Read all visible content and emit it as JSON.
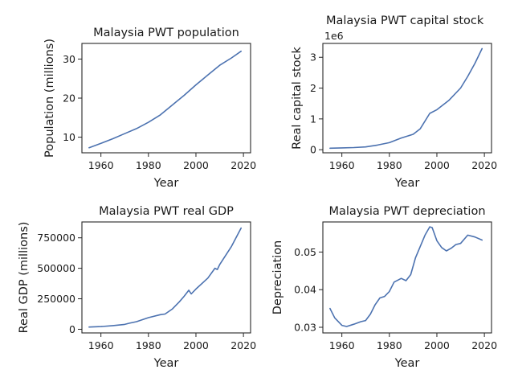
{
  "chart_data": [
    {
      "id": "population",
      "type": "line",
      "title": "Malaysia PWT population",
      "xlabel": "Year",
      "ylabel": "Population (millions)",
      "xlim": [
        1952,
        2023
      ],
      "ylim": [
        6,
        34
      ],
      "xticks": [
        1960,
        1980,
        2000,
        2020
      ],
      "yticks": [
        10,
        20,
        30
      ],
      "ytick_labels": [
        "10",
        "20",
        "30"
      ],
      "offset_label": "",
      "x": [
        1955,
        1960,
        1965,
        1970,
        1975,
        1980,
        1985,
        1990,
        1995,
        2000,
        2005,
        2010,
        2015,
        2019
      ],
      "y": [
        7.3,
        8.4,
        9.6,
        10.9,
        12.2,
        13.8,
        15.7,
        18.2,
        20.7,
        23.4,
        25.9,
        28.4,
        30.3,
        32.0
      ]
    },
    {
      "id": "capital-stock",
      "type": "line",
      "title": "Malaysia PWT capital stock",
      "xlabel": "Year",
      "ylabel": "Real capital stock",
      "xlim": [
        1952,
        2023
      ],
      "ylim": [
        -0.1,
        3.45
      ],
      "xticks": [
        1960,
        1980,
        2000,
        2020
      ],
      "yticks": [
        0,
        1,
        2,
        3
      ],
      "ytick_labels": [
        "0",
        "1",
        "2",
        "3"
      ],
      "offset_label": "1e6",
      "x": [
        1955,
        1960,
        1965,
        1970,
        1975,
        1980,
        1985,
        1990,
        1993,
        1997,
        2000,
        2005,
        2010,
        2013,
        2016,
        2019
      ],
      "y": [
        0.05,
        0.06,
        0.07,
        0.09,
        0.15,
        0.23,
        0.38,
        0.5,
        0.68,
        1.18,
        1.3,
        1.6,
        2.0,
        2.38,
        2.8,
        3.28
      ]
    },
    {
      "id": "real-gdp",
      "type": "line",
      "title": "Malaysia PWT real GDP",
      "xlabel": "Year",
      "ylabel": "Real GDP (millions)",
      "xlim": [
        1952,
        2023
      ],
      "ylim": [
        -30000,
        880000
      ],
      "xticks": [
        1960,
        1980,
        2000,
        2020
      ],
      "yticks": [
        0,
        250000,
        500000,
        750000
      ],
      "ytick_labels": [
        "0",
        "250000",
        "500000",
        "750000"
      ],
      "offset_label": "",
      "x": [
        1955,
        1960,
        1965,
        1970,
        1972,
        1975,
        1980,
        1985,
        1987,
        1990,
        1993,
        1995,
        1997,
        1998,
        2000,
        2005,
        2008,
        2009,
        2010,
        2015,
        2019
      ],
      "y": [
        18000,
        22000,
        30000,
        40000,
        50000,
        62000,
        95000,
        120000,
        125000,
        165000,
        225000,
        270000,
        320000,
        290000,
        330000,
        420000,
        500000,
        490000,
        530000,
        680000,
        830000
      ]
    },
    {
      "id": "depreciation",
      "type": "line",
      "title": "Malaysia PWT depreciation",
      "xlabel": "Year",
      "ylabel": "Depreciation",
      "xlim": [
        1952,
        2023
      ],
      "ylim": [
        0.0285,
        0.058
      ],
      "xticks": [
        1960,
        1980,
        2000,
        2020
      ],
      "yticks": [
        0.03,
        0.04,
        0.05
      ],
      "ytick_labels": [
        "0.03",
        "0.04",
        "0.05"
      ],
      "offset_label": "",
      "x": [
        1955,
        1957,
        1960,
        1962,
        1965,
        1968,
        1970,
        1972,
        1974,
        1976,
        1978,
        1980,
        1982,
        1985,
        1987,
        1989,
        1991,
        1993,
        1995,
        1997,
        1998,
        2000,
        2002,
        2004,
        2006,
        2008,
        2010,
        2013,
        2016,
        2019
      ],
      "y": [
        0.035,
        0.0325,
        0.0305,
        0.0302,
        0.0308,
        0.0315,
        0.0318,
        0.0335,
        0.036,
        0.0378,
        0.0382,
        0.0395,
        0.042,
        0.043,
        0.0424,
        0.044,
        0.0485,
        0.0515,
        0.0545,
        0.0567,
        0.0565,
        0.053,
        0.0512,
        0.0503,
        0.051,
        0.052,
        0.0523,
        0.0545,
        0.054,
        0.0532
      ]
    }
  ]
}
